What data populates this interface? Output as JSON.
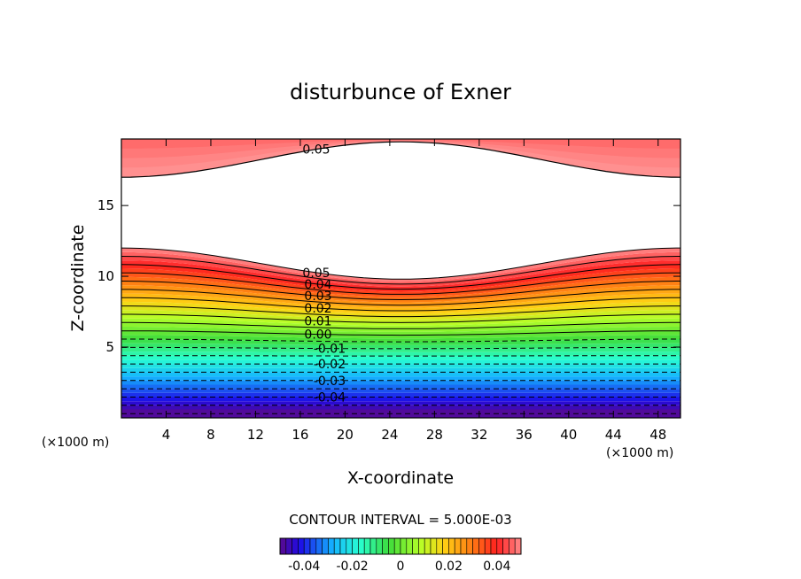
{
  "chart_data": {
    "type": "contour",
    "title": "disturbunce of Exner",
    "xlabel": "X-coordinate",
    "ylabel": "Z-coordinate",
    "x_unit_label": "(×1000 m)",
    "x_unit_label_right": "(×1000 m)",
    "xlim": [
      0,
      50
    ],
    "ylim": [
      0,
      19.7
    ],
    "x_ticks": [
      "4",
      "8",
      "12",
      "16",
      "20",
      "24",
      "28",
      "32",
      "36",
      "40",
      "44",
      "48"
    ],
    "x_tick_values": [
      4,
      8,
      12,
      16,
      20,
      24,
      28,
      32,
      36,
      40,
      44,
      48
    ],
    "y_ticks": [
      "5",
      "10",
      "15"
    ],
    "y_tick_values": [
      5,
      10,
      15
    ],
    "contour_interval_text": "CONTOUR INTERVAL = 5.000E-03",
    "contour_labels": [
      "0.05",
      "0.05",
      "0.04",
      "0.03",
      "0.02",
      "0.01",
      "0.00",
      "-0.01",
      "-0.02",
      "-0.03",
      "-0.04"
    ],
    "upper_band_range_z": [
      17.0,
      19.7
    ],
    "lower_band_top_z_edges": 12.7,
    "lower_band_top_z_center": 10.9,
    "colorbar": {
      "range": [
        -0.05,
        0.05
      ],
      "ticks": [
        "-0.04",
        "-0.02",
        "0",
        "0.02",
        "0.04"
      ],
      "tick_values": [
        -0.04,
        -0.02,
        0,
        0.02,
        0.04
      ],
      "colormap": "rainbow"
    },
    "colors": {
      "low": "#5a0a8c",
      "mid": "#3cdc3c",
      "high": "#ff2020",
      "lightest": "#ff8a8a"
    }
  }
}
